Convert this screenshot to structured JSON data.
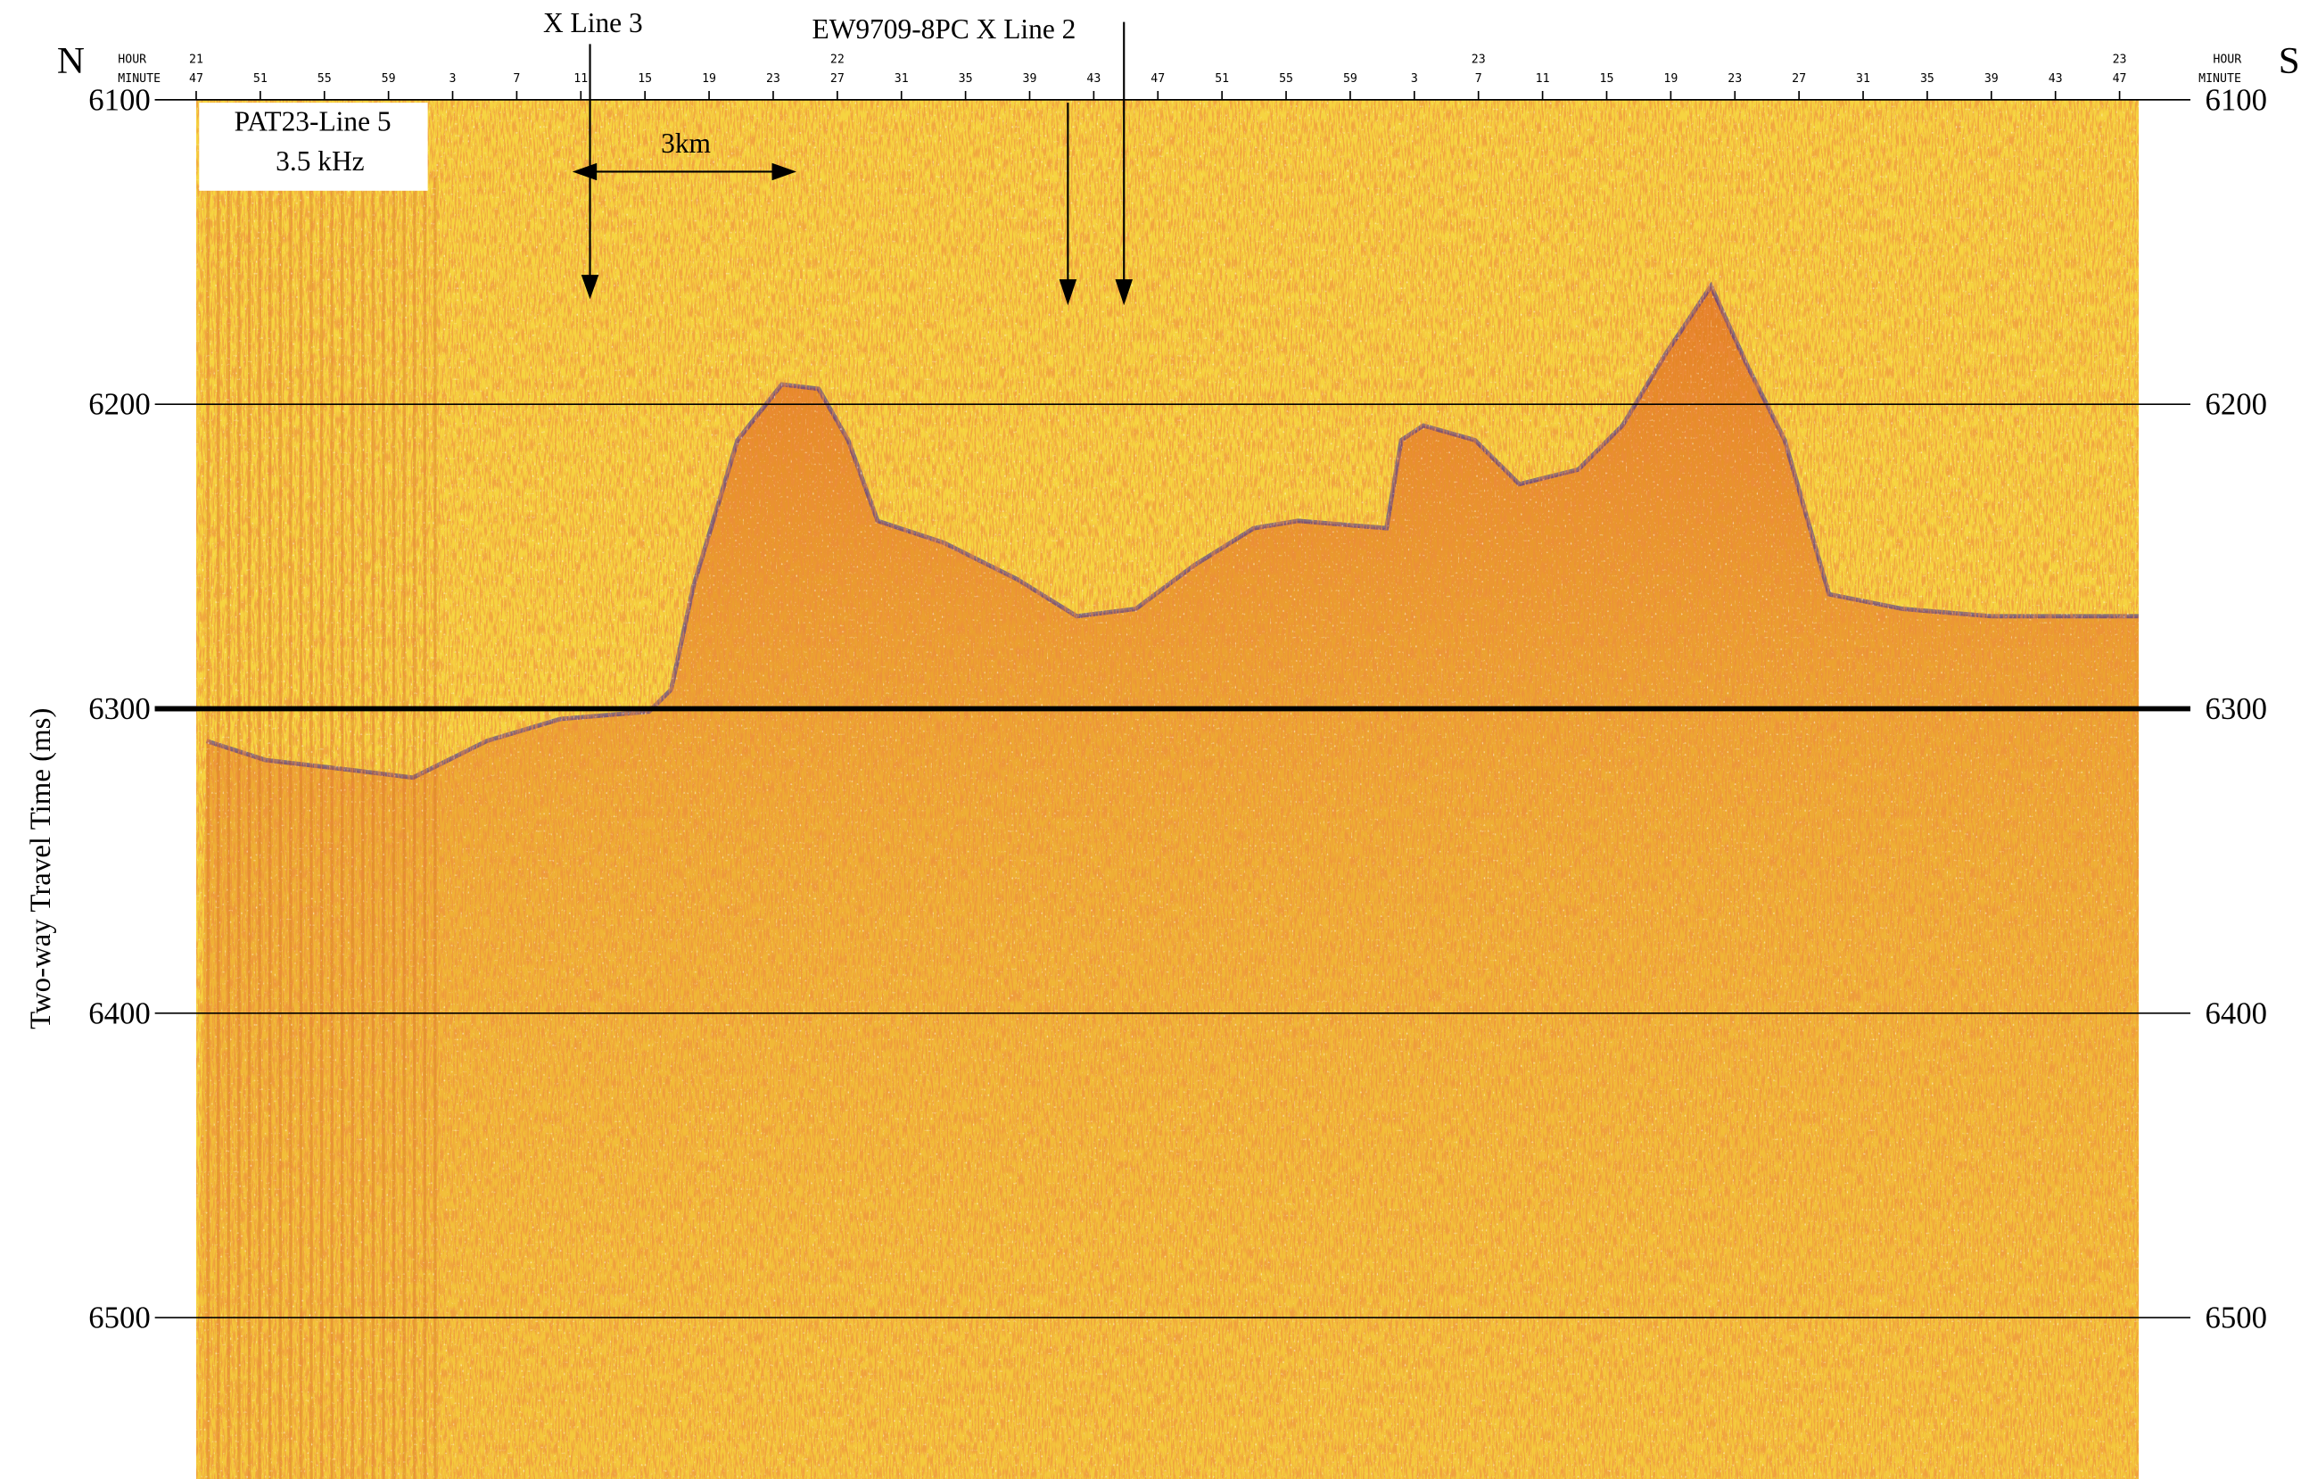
{
  "left_end": "N",
  "right_end": "S",
  "hour_label": "HOUR",
  "minute_label": "MINUTE",
  "hours": [
    21,
    null,
    null,
    null,
    null,
    null,
    null,
    null,
    null,
    null,
    22,
    null,
    null,
    null,
    null,
    null,
    null,
    null,
    null,
    null,
    23,
    null,
    null,
    null,
    null,
    null,
    null,
    null,
    null,
    null,
    23
  ],
  "minutes": [
    47,
    51,
    55,
    59,
    3,
    7,
    11,
    15,
    19,
    23,
    27,
    31,
    35,
    39,
    43,
    47,
    51,
    55,
    59,
    3,
    7,
    11,
    15,
    19,
    23,
    27,
    31,
    35,
    39,
    43,
    47
  ],
  "y_axis": {
    "label": "Two-way Travel Time (ms)",
    "ylim": [
      6100,
      6553
    ],
    "yticks": [
      6100,
      6200,
      6300,
      6400,
      6500
    ],
    "bold_tick": 6300
  },
  "annotations": {
    "x_line_3": "X Line 3",
    "x_line_2": "EW9709-8PC X Line 2",
    "scale_bar": "3km",
    "profile_name": "PAT23-Line 5",
    "frequency": "3.5 kHz"
  }
}
